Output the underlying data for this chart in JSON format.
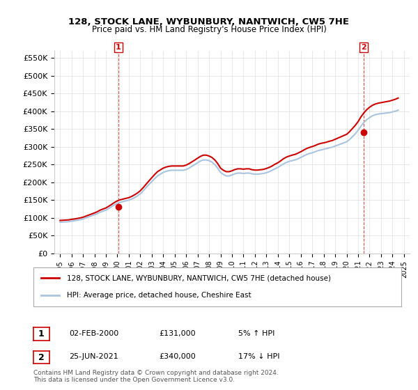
{
  "title": "128, STOCK LANE, WYBUNBURY, NANTWICH, CW5 7HE",
  "subtitle": "Price paid vs. HM Land Registry's House Price Index (HPI)",
  "legend_line1": "128, STOCK LANE, WYBUNBURY, NANTWICH, CW5 7HE (detached house)",
  "legend_line2": "HPI: Average price, detached house, Cheshire East",
  "annotation1_label": "1",
  "annotation1_date": "02-FEB-2000",
  "annotation1_price": "£131,000",
  "annotation1_hpi": "5% ↑ HPI",
  "annotation2_label": "2",
  "annotation2_date": "25-JUN-2021",
  "annotation2_price": "£340,000",
  "annotation2_hpi": "17% ↓ HPI",
  "footer": "Contains HM Land Registry data © Crown copyright and database right 2024.\nThis data is licensed under the Open Government Licence v3.0.",
  "sale1_year": 2000.09,
  "sale1_value": 131000,
  "sale2_year": 2021.48,
  "sale2_value": 340000,
  "hpi_color": "#aac4e0",
  "price_color": "#cc0000",
  "vline_color": "#cc0000",
  "dot_color": "#cc0000",
  "background_color": "#ffffff",
  "grid_color": "#dddddd",
  "ylim": [
    0,
    570000
  ],
  "xlim_start": 1994.5,
  "xlim_end": 2025.5,
  "yticks": [
    0,
    50000,
    100000,
    150000,
    200000,
    250000,
    300000,
    350000,
    400000,
    450000,
    500000,
    550000
  ],
  "ytick_labels": [
    "£0",
    "£50K",
    "£100K",
    "£150K",
    "£200K",
    "£250K",
    "£300K",
    "£350K",
    "£400K",
    "£450K",
    "£500K",
    "£550K"
  ],
  "xticks": [
    1995,
    1996,
    1997,
    1998,
    1999,
    2000,
    2001,
    2002,
    2003,
    2004,
    2005,
    2006,
    2007,
    2008,
    2009,
    2010,
    2011,
    2012,
    2013,
    2014,
    2015,
    2016,
    2017,
    2018,
    2019,
    2020,
    2021,
    2022,
    2023,
    2024,
    2025
  ],
  "hpi_years": [
    1995.0,
    1995.25,
    1995.5,
    1995.75,
    1996.0,
    1996.25,
    1996.5,
    1996.75,
    1997.0,
    1997.25,
    1997.5,
    1997.75,
    1998.0,
    1998.25,
    1998.5,
    1998.75,
    1999.0,
    1999.25,
    1999.5,
    1999.75,
    2000.0,
    2000.25,
    2000.5,
    2000.75,
    2001.0,
    2001.25,
    2001.5,
    2001.75,
    2002.0,
    2002.25,
    2002.5,
    2002.75,
    2003.0,
    2003.25,
    2003.5,
    2003.75,
    2004.0,
    2004.25,
    2004.5,
    2004.75,
    2005.0,
    2005.25,
    2005.5,
    2005.75,
    2006.0,
    2006.25,
    2006.5,
    2006.75,
    2007.0,
    2007.25,
    2007.5,
    2007.75,
    2008.0,
    2008.25,
    2008.5,
    2008.75,
    2009.0,
    2009.25,
    2009.5,
    2009.75,
    2010.0,
    2010.25,
    2010.5,
    2010.75,
    2011.0,
    2011.25,
    2011.5,
    2011.75,
    2012.0,
    2012.25,
    2012.5,
    2012.75,
    2013.0,
    2013.25,
    2013.5,
    2013.75,
    2014.0,
    2014.25,
    2014.5,
    2014.75,
    2015.0,
    2015.25,
    2015.5,
    2015.75,
    2016.0,
    2016.25,
    2016.5,
    2016.75,
    2017.0,
    2017.25,
    2017.5,
    2017.75,
    2018.0,
    2018.25,
    2018.5,
    2018.75,
    2019.0,
    2019.25,
    2019.5,
    2019.75,
    2020.0,
    2020.25,
    2020.5,
    2020.75,
    2021.0,
    2021.25,
    2021.5,
    2021.75,
    2022.0,
    2022.25,
    2022.5,
    2022.75,
    2023.0,
    2023.25,
    2023.5,
    2023.75,
    2024.0,
    2024.25,
    2024.5
  ],
  "hpi_values": [
    88000,
    88500,
    89000,
    89500,
    91000,
    92000,
    93500,
    95000,
    97000,
    100000,
    103000,
    106000,
    109000,
    112000,
    116000,
    119000,
    122000,
    127000,
    132000,
    137000,
    141000,
    144000,
    146000,
    148000,
    150000,
    153000,
    157000,
    162000,
    168000,
    176000,
    185000,
    194000,
    202000,
    210000,
    218000,
    223000,
    228000,
    231000,
    233000,
    234000,
    234000,
    234000,
    234000,
    234000,
    236000,
    240000,
    245000,
    250000,
    255000,
    260000,
    263000,
    263000,
    261000,
    257000,
    250000,
    240000,
    228000,
    222000,
    218000,
    218000,
    221000,
    224000,
    226000,
    226000,
    225000,
    226000,
    226000,
    224000,
    223000,
    223000,
    224000,
    225000,
    227000,
    230000,
    234000,
    238000,
    242000,
    247000,
    252000,
    256000,
    259000,
    261000,
    263000,
    266000,
    270000,
    274000,
    278000,
    281000,
    283000,
    286000,
    289000,
    291000,
    293000,
    295000,
    297000,
    299000,
    302000,
    305000,
    308000,
    311000,
    314000,
    320000,
    328000,
    336000,
    346000,
    358000,
    368000,
    376000,
    382000,
    387000,
    390000,
    392000,
    393000,
    394000,
    395000,
    396000,
    398000,
    400000,
    403000
  ],
  "price_years": [
    1995.0,
    1995.25,
    1995.5,
    1995.75,
    1996.0,
    1996.25,
    1996.5,
    1996.75,
    1997.0,
    1997.25,
    1997.5,
    1997.75,
    1998.0,
    1998.25,
    1998.5,
    1998.75,
    1999.0,
    1999.25,
    1999.5,
    1999.75,
    2000.0,
    2000.25,
    2000.5,
    2000.75,
    2001.0,
    2001.25,
    2001.5,
    2001.75,
    2002.0,
    2002.25,
    2002.5,
    2002.75,
    2003.0,
    2003.25,
    2003.5,
    2003.75,
    2004.0,
    2004.25,
    2004.5,
    2004.75,
    2005.0,
    2005.25,
    2005.5,
    2005.75,
    2006.0,
    2006.25,
    2006.5,
    2006.75,
    2007.0,
    2007.25,
    2007.5,
    2007.75,
    2008.0,
    2008.25,
    2008.5,
    2008.75,
    2009.0,
    2009.25,
    2009.5,
    2009.75,
    2010.0,
    2010.25,
    2010.5,
    2010.75,
    2011.0,
    2011.25,
    2011.5,
    2011.75,
    2012.0,
    2012.25,
    2012.5,
    2012.75,
    2013.0,
    2013.25,
    2013.5,
    2013.75,
    2014.0,
    2014.25,
    2014.5,
    2014.75,
    2015.0,
    2015.25,
    2015.5,
    2015.75,
    2016.0,
    2016.25,
    2016.5,
    2016.75,
    2017.0,
    2017.25,
    2017.5,
    2017.75,
    2018.0,
    2018.25,
    2018.5,
    2018.75,
    2019.0,
    2019.25,
    2019.5,
    2019.75,
    2020.0,
    2020.25,
    2020.5,
    2020.75,
    2021.0,
    2021.25,
    2021.5,
    2021.75,
    2022.0,
    2022.25,
    2022.5,
    2022.75,
    2023.0,
    2023.25,
    2023.5,
    2023.75,
    2024.0,
    2024.25,
    2024.5
  ],
  "price_values": [
    93000,
    93500,
    94000,
    94500,
    96000,
    97000,
    98500,
    100000,
    102000,
    105000,
    108000,
    111000,
    114000,
    117500,
    122000,
    125000,
    128000,
    133000,
    138000,
    143500,
    148000,
    151000,
    153000,
    155000,
    157000,
    160500,
    165000,
    170000,
    176500,
    185000,
    194500,
    204000,
    213000,
    222000,
    230000,
    235000,
    240000,
    243000,
    245000,
    246000,
    246000,
    246000,
    246000,
    246000,
    248500,
    252500,
    257500,
    262500,
    268000,
    273000,
    276500,
    276500,
    274000,
    270000,
    263000,
    253000,
    240000,
    234000,
    230000,
    230000,
    232500,
    236000,
    238000,
    238000,
    237000,
    238000,
    238000,
    235500,
    234500,
    234500,
    235500,
    236500,
    239000,
    242000,
    246000,
    251000,
    255000,
    260500,
    266500,
    271000,
    274000,
    276500,
    278500,
    282000,
    286000,
    290500,
    295000,
    298000,
    300500,
    303500,
    307000,
    309500,
    311000,
    313000,
    315500,
    317500,
    321000,
    324500,
    328000,
    331500,
    335000,
    342000,
    351000,
    360000,
    370500,
    384000,
    395000,
    404000,
    411000,
    416500,
    420000,
    422500,
    424000,
    425500,
    427000,
    428500,
    431000,
    433500,
    437000
  ]
}
